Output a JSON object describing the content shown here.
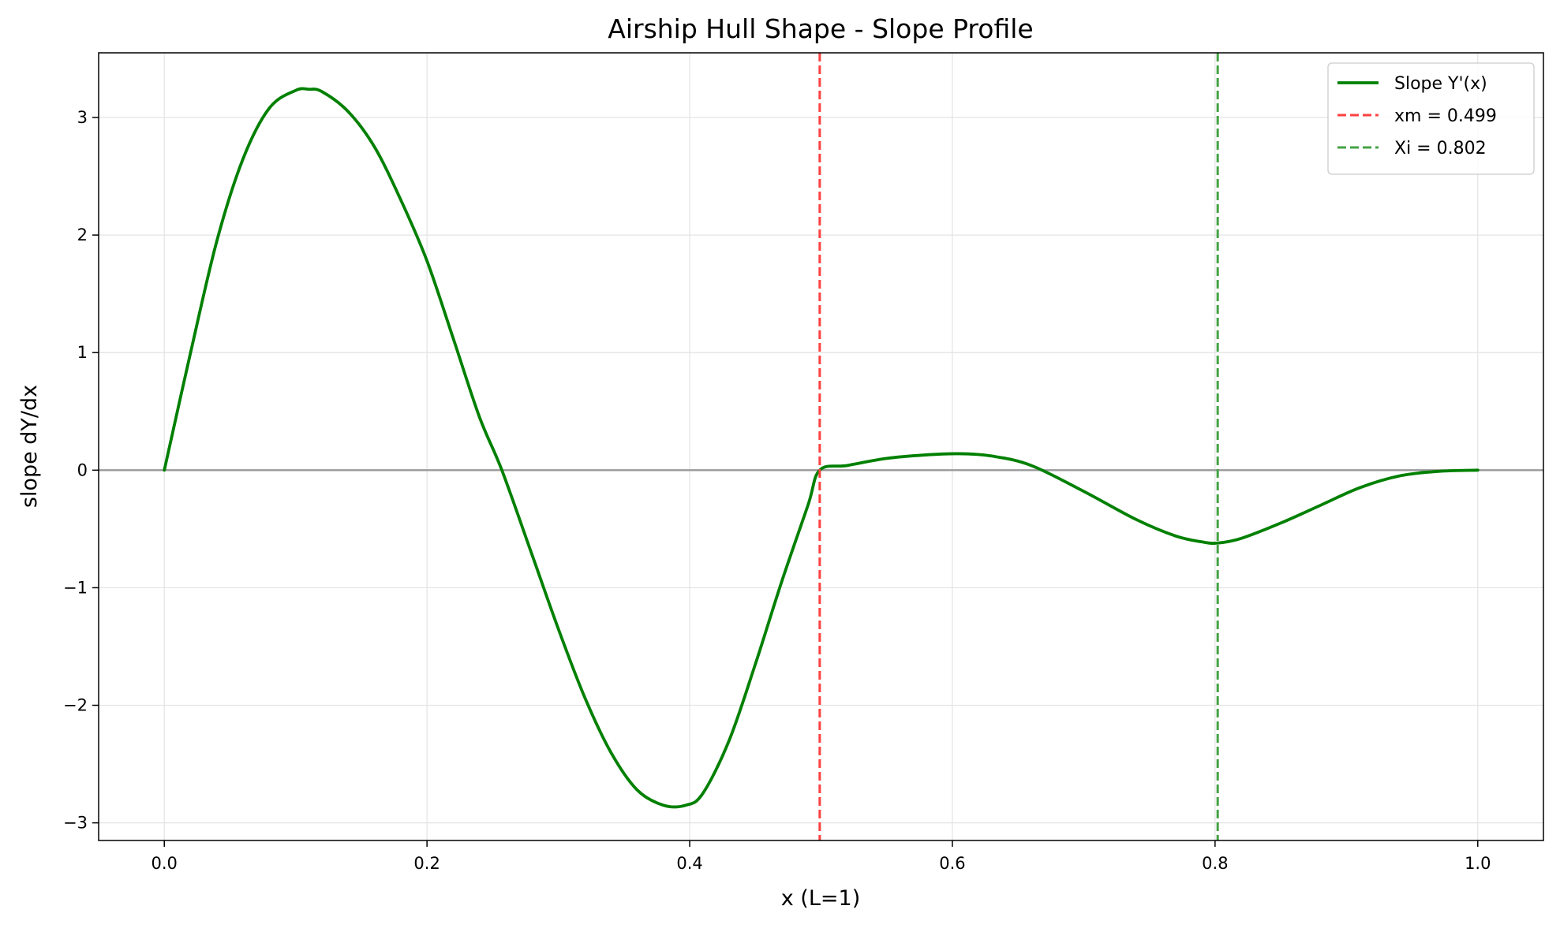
{
  "chart_data": {
    "type": "line",
    "title": "Airship Hull Shape - Slope Profile",
    "xlabel": "x (L=1)",
    "ylabel": "slope dY/dx",
    "xlim": [
      -0.05,
      1.05
    ],
    "ylim": [
      -3.15,
      3.55
    ],
    "xticks": [
      0.0,
      0.2,
      0.4,
      0.6,
      0.8,
      1.0
    ],
    "xtick_labels": [
      "0.0",
      "0.2",
      "0.4",
      "0.6",
      "0.8",
      "1.0"
    ],
    "yticks": [
      -3,
      -2,
      -1,
      0,
      1,
      2,
      3
    ],
    "ytick_labels": [
      "−3",
      "−2",
      "−1",
      "0",
      "1",
      "2",
      "3"
    ],
    "grid": true,
    "legend_position": "top-right",
    "zero_line": {
      "y": 0,
      "color": "#999999"
    },
    "series": [
      {
        "name": "Slope Y'(x)",
        "color": "#008000",
        "style": "solid",
        "x": [
          0.0,
          0.02,
          0.04,
          0.06,
          0.08,
          0.1,
          0.11,
          0.12,
          0.14,
          0.16,
          0.18,
          0.2,
          0.22,
          0.24,
          0.257,
          0.28,
          0.3,
          0.32,
          0.34,
          0.36,
          0.38,
          0.397,
          0.41,
          0.43,
          0.45,
          0.47,
          0.49,
          0.499,
          0.52,
          0.55,
          0.58,
          0.605,
          0.63,
          0.66,
          0.7,
          0.74,
          0.77,
          0.79,
          0.802,
          0.82,
          0.85,
          0.88,
          0.91,
          0.94,
          0.97,
          1.0
        ],
        "values": [
          0.0,
          1.0,
          1.95,
          2.65,
          3.08,
          3.23,
          3.24,
          3.22,
          3.05,
          2.75,
          2.3,
          1.78,
          1.12,
          0.45,
          0.0,
          -0.72,
          -1.35,
          -1.93,
          -2.4,
          -2.72,
          -2.85,
          -2.85,
          -2.75,
          -2.3,
          -1.65,
          -0.95,
          -0.3,
          0.0,
          0.04,
          0.1,
          0.13,
          0.14,
          0.12,
          0.04,
          -0.18,
          -0.42,
          -0.56,
          -0.61,
          -0.62,
          -0.58,
          -0.45,
          -0.3,
          -0.15,
          -0.05,
          -0.01,
          0.0
        ]
      },
      {
        "name": "xm = 0.499",
        "color": "#ff4040",
        "style": "dashed",
        "vline_x": 0.499
      },
      {
        "name": "Xi = 0.802",
        "color": "#44a344",
        "style": "dashed",
        "vline_x": 0.802
      }
    ]
  }
}
